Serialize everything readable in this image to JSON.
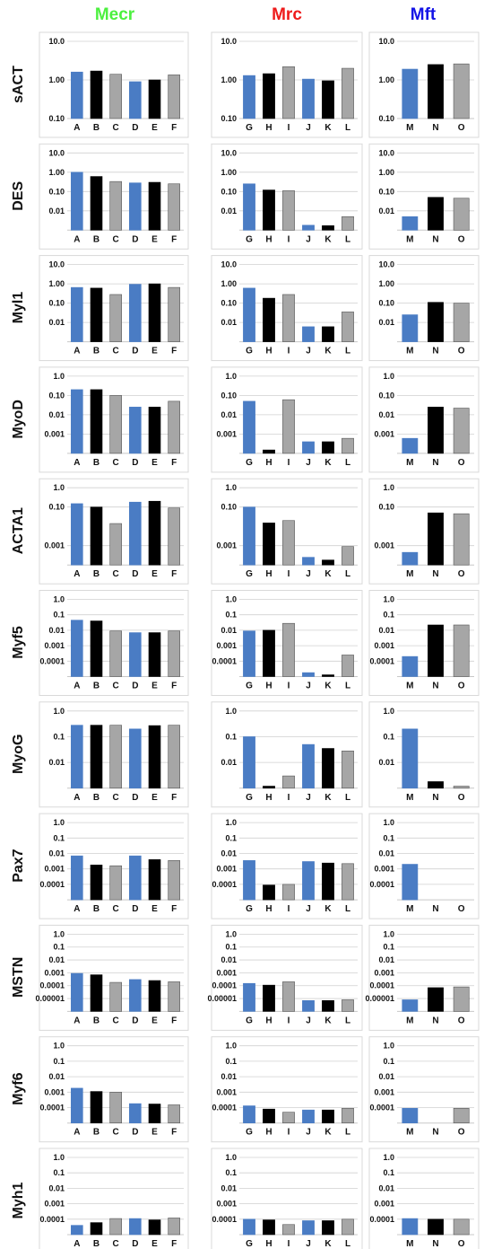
{
  "colors": {
    "mecr_header": "#4cf03f",
    "mrc_header": "#ee1b1b",
    "mft_header": "#1414e6",
    "blue_bar": "#4a7cc4",
    "black_bar": "#000000",
    "gray_bar": "#a6a6a6",
    "gridline": "#d0d0d0",
    "axis": "#c8c8c8"
  },
  "headers": [
    "Mecr",
    "Mrc",
    "Mft"
  ],
  "chart_data": {
    "type": "bar",
    "scale": "log",
    "grid": true,
    "columns": [
      {
        "name": "Mecr",
        "categories": [
          "A",
          "B",
          "C",
          "D",
          "E",
          "F"
        ],
        "colors": [
          "blue",
          "black",
          "gray",
          "blue",
          "black",
          "gray"
        ]
      },
      {
        "name": "Mrc",
        "categories": [
          "G",
          "H",
          "I",
          "J",
          "K",
          "L"
        ],
        "colors": [
          "blue",
          "black",
          "gray",
          "blue",
          "black",
          "gray"
        ]
      },
      {
        "name": "Mft",
        "categories": [
          "M",
          "N",
          "O"
        ],
        "colors": [
          "blue",
          "black",
          "gray"
        ]
      }
    ],
    "rows": [
      {
        "gene": "sACT",
        "tick_labels": [
          "10.0",
          "1.00",
          "0.10"
        ],
        "ylim": [
          0.1,
          10
        ],
        "values": [
          [
            1.6,
            1.7,
            1.4,
            0.9,
            1.0,
            1.35
          ],
          [
            1.3,
            1.45,
            2.2,
            1.05,
            0.95,
            2.0
          ],
          [
            1.9,
            2.5,
            2.6
          ]
        ]
      },
      {
        "gene": "DES",
        "tick_labels": [
          "10.0",
          "1.00",
          "0.10",
          "0.01"
        ],
        "ylim": [
          0.001,
          10
        ],
        "values": [
          [
            1.0,
            0.6,
            0.33,
            0.28,
            0.3,
            0.25
          ],
          [
            0.25,
            0.12,
            0.11,
            0.0018,
            0.0017,
            0.005
          ],
          [
            0.005,
            0.05,
            0.045
          ]
        ]
      },
      {
        "gene": "Myl1",
        "tick_labels": [
          "10.0",
          "1.00",
          "0.10",
          "0.01"
        ],
        "ylim": [
          0.001,
          10
        ],
        "values": [
          [
            0.65,
            0.6,
            0.28,
            0.95,
            1.0,
            0.65
          ],
          [
            0.6,
            0.18,
            0.28,
            0.006,
            0.006,
            0.035
          ],
          [
            0.025,
            0.11,
            0.1
          ]
        ]
      },
      {
        "gene": "MyoD",
        "tick_labels": [
          "1.0",
          "0.10",
          "0.01",
          "0.001"
        ],
        "ylim": [
          0.0001,
          1
        ],
        "values": [
          [
            0.2,
            0.2,
            0.1,
            0.025,
            0.025,
            0.05
          ],
          [
            0.05,
            0.00015,
            0.06,
            0.0004,
            0.0004,
            0.0006
          ],
          [
            0.0006,
            0.025,
            0.022
          ]
        ]
      },
      {
        "gene": "ACTA1",
        "tick_labels": [
          "1.0",
          "0.10",
          "0.001"
        ],
        "ylim": [
          0.0001,
          1
        ],
        "values": [
          [
            0.15,
            0.1,
            0.014,
            0.18,
            0.2,
            0.09
          ],
          [
            0.1,
            0.015,
            0.02,
            0.00025,
            0.00018,
            0.0009
          ],
          [
            0.00045,
            0.05,
            0.045
          ]
        ]
      },
      {
        "gene": "Myf5",
        "tick_labels": [
          "1.0",
          "0.1",
          "0.01",
          "0.001",
          "0.0001"
        ],
        "ylim": [
          1e-05,
          1
        ],
        "values": [
          [
            0.045,
            0.04,
            0.009,
            0.007,
            0.007,
            0.009
          ],
          [
            0.009,
            0.01,
            0.028,
            1.8e-05,
            1.3e-05,
            0.00025
          ],
          [
            0.0002,
            0.022,
            0.022
          ]
        ]
      },
      {
        "gene": "MyoG",
        "tick_labels": [
          "1.0",
          "0.1",
          "0.01"
        ],
        "ylim": [
          0.001,
          1
        ],
        "values": [
          [
            0.28,
            0.28,
            0.28,
            0.2,
            0.27,
            0.28
          ],
          [
            0.1,
            0.0012,
            0.003,
            0.05,
            0.035,
            0.028
          ],
          [
            0.2,
            0.0018,
            0.0012
          ]
        ]
      },
      {
        "gene": "Pax7",
        "tick_labels": [
          "1.0",
          "0.1",
          "0.01",
          "0.001",
          "0.0001"
        ],
        "ylim": [
          1e-05,
          1
        ],
        "values": [
          [
            0.007,
            0.0018,
            0.0016,
            0.007,
            0.004,
            0.0035
          ],
          [
            0.0035,
            9e-05,
            0.0001,
            0.003,
            0.0024,
            0.0022
          ],
          [
            0.002,
            null,
            null
          ]
        ]
      },
      {
        "gene": "MSTN",
        "tick_labels": [
          "1.0",
          "0.1",
          "0.01",
          "0.001",
          "0.0001",
          "0.00001"
        ],
        "ylim": [
          1e-06,
          1
        ],
        "values": [
          [
            0.0009,
            0.0007,
            0.00018,
            0.0003,
            0.00025,
            0.0002
          ],
          [
            0.00015,
            0.00011,
            0.0002,
            7e-06,
            7e-06,
            8e-06
          ],
          [
            8e-06,
            7e-05,
            8e-05
          ]
        ]
      },
      {
        "gene": "Myf6",
        "tick_labels": [
          "1.0",
          "0.1",
          "0.01",
          "0.001",
          "0.0001"
        ],
        "ylim": [
          1e-05,
          1
        ],
        "values": [
          [
            0.0018,
            0.0011,
            0.001,
            0.00018,
            0.00017,
            0.00015
          ],
          [
            0.00013,
            8e-05,
            5e-05,
            7e-05,
            7e-05,
            9e-05
          ],
          [
            9e-05,
            null,
            9e-05
          ]
        ]
      },
      {
        "gene": "Myh1",
        "tick_labels": [
          "1.0",
          "0.1",
          "0.01",
          "0.001",
          "0.0001"
        ],
        "ylim": [
          1e-05,
          1
        ],
        "values": [
          [
            4e-05,
            6e-05,
            0.00011,
            0.00011,
            9e-05,
            0.00012
          ],
          [
            0.0001,
            9e-05,
            4.5e-05,
            8e-05,
            8e-05,
            0.0001
          ],
          [
            0.00011,
            0.0001,
            0.0001
          ]
        ]
      }
    ]
  }
}
